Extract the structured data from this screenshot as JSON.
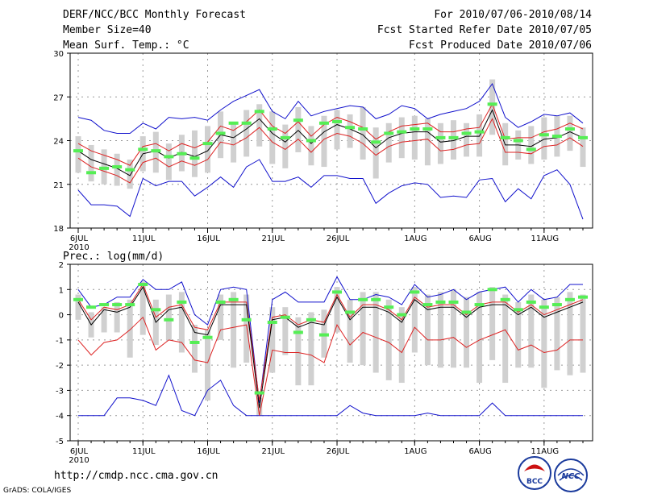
{
  "header": {
    "title": "DERF/NCC/BCC Monthly Forecast",
    "member_size": "Member Size=40",
    "forecast_range": "For 2010/07/06-2010/08/14",
    "start_refer": "Fcst Started Refer Date 2010/07/05",
    "produced": "Fcst Produced Date 2010/07/06"
  },
  "footer": {
    "url": "http://cmdp.ncc.cma.gov.cn",
    "credit": "GrADS: COLA/IGES",
    "logo_bcc": "BCC",
    "logo_ncc": "NCC"
  },
  "colors": {
    "bar": "#d0d0d0",
    "median": "#55ee55",
    "mean": "#000000",
    "inner_band": "#dd2222",
    "outer_band": "#1111cc",
    "grid": "#999999"
  },
  "chart_data": [
    {
      "type": "line",
      "title": "Mean Surf. Temp.: °C",
      "ylim": [
        18,
        30
      ],
      "yticks": [
        18,
        21,
        24,
        27,
        30
      ],
      "grid": true,
      "x_tick_days": [
        0,
        5,
        10,
        15,
        20,
        26,
        31,
        36
      ],
      "x_tick_labels": [
        "6JUL",
        "11JUL",
        "16JUL",
        "21JUL",
        "26JUL",
        "1AUG",
        "6AUG",
        "11AUG"
      ],
      "year_label": "2010",
      "n_days": 40,
      "series": [
        {
          "name": "mean",
          "values": [
            23.3,
            22.7,
            22.4,
            22.1,
            21.6,
            23.1,
            23.3,
            22.8,
            23.2,
            22.9,
            23.3,
            24.4,
            24.2,
            24.8,
            25.5,
            24.5,
            23.9,
            24.7,
            23.8,
            24.6,
            25.1,
            24.8,
            24.4,
            23.5,
            24.2,
            24.5,
            24.6,
            24.6,
            23.9,
            24.0,
            24.3,
            24.3,
            26.1,
            23.7,
            23.7,
            23.6,
            24.1,
            24.2,
            24.6,
            24.2
          ]
        },
        {
          "name": "mean+sd",
          "values": [
            23.8,
            23.3,
            23.0,
            22.7,
            22.3,
            23.6,
            23.8,
            23.3,
            23.8,
            23.5,
            23.9,
            25.0,
            24.7,
            25.3,
            26.1,
            25.0,
            24.5,
            25.3,
            24.3,
            25.1,
            25.6,
            25.3,
            24.9,
            24.1,
            24.6,
            25.0,
            25.1,
            25.2,
            24.6,
            24.6,
            24.8,
            24.9,
            26.5,
            24.1,
            24.2,
            24.2,
            24.6,
            24.8,
            25.2,
            24.8
          ]
        },
        {
          "name": "mean-sd",
          "values": [
            22.8,
            22.2,
            21.9,
            21.6,
            21.1,
            22.5,
            22.8,
            22.2,
            22.6,
            22.3,
            22.7,
            23.9,
            23.7,
            24.2,
            24.9,
            23.9,
            23.4,
            24.1,
            23.2,
            24.1,
            24.5,
            24.3,
            23.8,
            23.0,
            23.6,
            23.9,
            24.0,
            24.1,
            23.3,
            23.4,
            23.7,
            23.8,
            25.5,
            23.2,
            23.2,
            23.1,
            23.6,
            23.7,
            24.2,
            23.6
          ]
        },
        {
          "name": "max",
          "values": [
            25.6,
            25.4,
            24.7,
            24.5,
            24.5,
            25.2,
            24.8,
            25.6,
            25.5,
            25.6,
            25.4,
            26.1,
            26.7,
            27.1,
            27.5,
            26.0,
            25.5,
            26.7,
            25.7,
            26.0,
            26.2,
            26.4,
            26.3,
            25.5,
            25.8,
            26.4,
            26.2,
            25.5,
            25.8,
            26.0,
            26.2,
            26.7,
            27.9,
            25.6,
            24.9,
            25.3,
            25.8,
            25.7,
            25.9,
            25.2
          ]
        },
        {
          "name": "min",
          "values": [
            20.6,
            19.6,
            19.6,
            19.5,
            18.8,
            21.4,
            20.9,
            21.2,
            21.2,
            20.2,
            20.8,
            21.5,
            20.8,
            22.2,
            22.7,
            21.2,
            21.2,
            21.5,
            20.8,
            21.6,
            21.6,
            21.4,
            21.4,
            19.7,
            20.4,
            20.9,
            21.1,
            21.0,
            20.1,
            20.2,
            20.1,
            21.3,
            21.4,
            19.8,
            20.7,
            20.0,
            21.6,
            22.0,
            21.0,
            18.6
          ]
        },
        {
          "name": "median",
          "values": [
            23.3,
            21.8,
            22.1,
            22.2,
            22.0,
            23.4,
            23.3,
            22.9,
            23.1,
            22.8,
            23.8,
            24.5,
            25.2,
            25.2,
            26.0,
            24.8,
            24.2,
            25.4,
            24.0,
            25.2,
            25.3,
            24.9,
            24.8,
            23.9,
            24.5,
            24.6,
            24.8,
            24.8,
            24.2,
            24.2,
            24.5,
            24.6,
            26.5,
            24.2,
            24.0,
            23.4,
            24.4,
            24.3,
            24.8,
            24.2
          ]
        },
        {
          "name": "bar_top",
          "values": [
            24.3,
            23.7,
            23.4,
            23.1,
            22.7,
            24.3,
            24.6,
            23.8,
            24.4,
            24.7,
            25.0,
            26.0,
            25.2,
            26.1,
            26.5,
            26.0,
            25.1,
            26.3,
            25.0,
            25.7,
            26.1,
            25.8,
            26.3,
            24.9,
            25.2,
            25.6,
            25.7,
            25.5,
            25.2,
            25.4,
            25.2,
            25.8,
            28.2,
            25.2,
            24.7,
            25.0,
            25.6,
            25.7,
            25.7,
            24.9
          ]
        },
        {
          "name": "bar_bottom",
          "values": [
            21.8,
            21.2,
            21.0,
            20.9,
            20.7,
            21.9,
            21.8,
            21.3,
            21.9,
            21.5,
            21.8,
            22.8,
            22.5,
            22.9,
            23.6,
            22.4,
            22.1,
            23.2,
            22.3,
            22.2,
            23.4,
            23.5,
            22.7,
            21.4,
            22.5,
            22.8,
            22.7,
            22.3,
            22.4,
            22.7,
            22.9,
            22.9,
            24.4,
            22.3,
            22.7,
            22.4,
            22.7,
            22.9,
            23.3,
            22.2
          ]
        }
      ]
    },
    {
      "type": "line",
      "title": "Prec.: log(mm/d)",
      "ylim": [
        -5,
        2
      ],
      "yticks": [
        -5,
        -4,
        -3,
        -2,
        -1,
        0,
        1,
        2
      ],
      "grid": true,
      "x_tick_days": [
        0,
        5,
        10,
        15,
        20,
        26,
        31,
        36
      ],
      "x_tick_labels": [
        "6JUL",
        "11JUL",
        "16JUL",
        "21JUL",
        "26JUL",
        "1AUG",
        "6AUG",
        "11AUG"
      ],
      "year_label": "2010",
      "n_days": 40,
      "series": [
        {
          "name": "mean",
          "values": [
            0.5,
            -0.4,
            0.2,
            0.1,
            0.3,
            1.1,
            -0.3,
            0.2,
            0.3,
            -0.7,
            -0.8,
            0.4,
            0.4,
            0.4,
            -3.7,
            -0.2,
            -0.1,
            -0.5,
            -0.3,
            -0.4,
            0.7,
            -0.2,
            0.3,
            0.3,
            0.1,
            -0.3,
            0.6,
            0.2,
            0.3,
            0.3,
            -0.1,
            0.3,
            0.4,
            0.4,
            0.0,
            0.3,
            -0.1,
            0.1,
            0.3,
            0.5
          ]
        },
        {
          "name": "mean+sd",
          "values": [
            0.6,
            -0.2,
            0.3,
            0.2,
            0.4,
            1.2,
            -0.1,
            0.3,
            0.4,
            -0.5,
            -0.6,
            0.5,
            0.5,
            0.5,
            -3.4,
            -0.1,
            0.0,
            -0.4,
            -0.2,
            -0.3,
            0.8,
            -0.1,
            0.4,
            0.4,
            0.2,
            -0.2,
            0.7,
            0.3,
            0.4,
            0.4,
            0.0,
            0.4,
            0.5,
            0.5,
            0.1,
            0.4,
            0.0,
            0.2,
            0.4,
            0.6
          ]
        },
        {
          "name": "mean-sd",
          "values": [
            -1.0,
            -1.6,
            -1.1,
            -1.0,
            -0.6,
            -0.1,
            -1.4,
            -1.0,
            -1.1,
            -1.8,
            -1.9,
            -0.6,
            -0.5,
            -0.4,
            -4.0,
            -1.4,
            -1.5,
            -1.5,
            -1.6,
            -1.9,
            -0.4,
            -1.2,
            -0.7,
            -0.9,
            -1.1,
            -1.5,
            -0.5,
            -1.0,
            -1.0,
            -0.9,
            -1.3,
            -1.0,
            -0.8,
            -0.6,
            -1.4,
            -1.2,
            -1.5,
            -1.4,
            -1.0,
            -1.0
          ]
        },
        {
          "name": "max",
          "values": [
            1.0,
            0.3,
            0.4,
            0.7,
            0.7,
            1.4,
            1.0,
            1.0,
            1.3,
            0.0,
            -0.4,
            1.0,
            1.1,
            1.0,
            -3.5,
            0.6,
            0.9,
            0.5,
            0.5,
            0.5,
            1.5,
            0.6,
            0.6,
            0.8,
            0.7,
            0.4,
            1.2,
            0.7,
            0.8,
            1.0,
            0.6,
            0.9,
            1.0,
            1.1,
            0.5,
            1.0,
            0.6,
            0.7,
            1.2,
            1.2
          ]
        },
        {
          "name": "min",
          "values": [
            -4.0,
            -4.0,
            -4.0,
            -3.3,
            -3.3,
            -3.4,
            -3.6,
            -2.4,
            -3.8,
            -4.0,
            -3.0,
            -2.6,
            -3.6,
            -4.0,
            -4.0,
            -4.0,
            -4.0,
            -4.0,
            -4.0,
            -4.0,
            -4.0,
            -3.6,
            -3.9,
            -4.0,
            -4.0,
            -4.0,
            -4.0,
            -3.9,
            -4.0,
            -4.0,
            -4.0,
            -4.0,
            -3.5,
            -4.0,
            -4.0,
            -4.0,
            -4.0,
            -4.0,
            -4.0,
            -4.0
          ]
        },
        {
          "name": "median",
          "values": [
            0.6,
            0.3,
            0.4,
            0.4,
            0.4,
            1.2,
            0.2,
            -0.2,
            0.5,
            -1.1,
            -0.9,
            0.5,
            0.6,
            -0.2,
            -3.1,
            -0.3,
            -0.1,
            -0.7,
            -0.2,
            -0.8,
            0.9,
            0.1,
            0.6,
            0.6,
            0.3,
            0.0,
            0.9,
            0.4,
            0.5,
            0.5,
            0.1,
            0.4,
            1.0,
            0.6,
            0.2,
            0.5,
            0.3,
            0.4,
            0.6,
            0.7
          ]
        },
        {
          "name": "bar_top",
          "values": [
            0.8,
            0.1,
            0.3,
            0.5,
            0.6,
            1.3,
            0.6,
            0.8,
            0.9,
            -0.4,
            -0.6,
            0.8,
            0.9,
            0.8,
            -3.3,
            0.3,
            0.3,
            -0.1,
            0.1,
            0.2,
            1.1,
            0.6,
            0.9,
            0.9,
            0.6,
            0.3,
            1.1,
            0.8,
            0.9,
            1.0,
            0.7,
            0.9,
            1.1,
            0.8,
            0.5,
            0.8,
            0.6,
            0.7,
            0.9,
            0.8
          ]
        },
        {
          "name": "bar_bottom",
          "values": [
            -0.2,
            -0.9,
            -0.7,
            -0.7,
            -1.7,
            -0.8,
            -1.2,
            -1.0,
            -1.5,
            -2.3,
            -3.4,
            -1.0,
            -2.1,
            -1.9,
            -4.0,
            -2.3,
            -1.6,
            -2.8,
            -2.8,
            -1.7,
            -0.7,
            -1.9,
            -2.0,
            -2.3,
            -2.6,
            -2.7,
            -1.5,
            -2.0,
            -2.1,
            -2.1,
            -2.1,
            -2.7,
            -1.8,
            -2.7,
            -2.1,
            -2.1,
            -2.9,
            -2.2,
            -2.4,
            -2.3
          ]
        }
      ]
    }
  ]
}
